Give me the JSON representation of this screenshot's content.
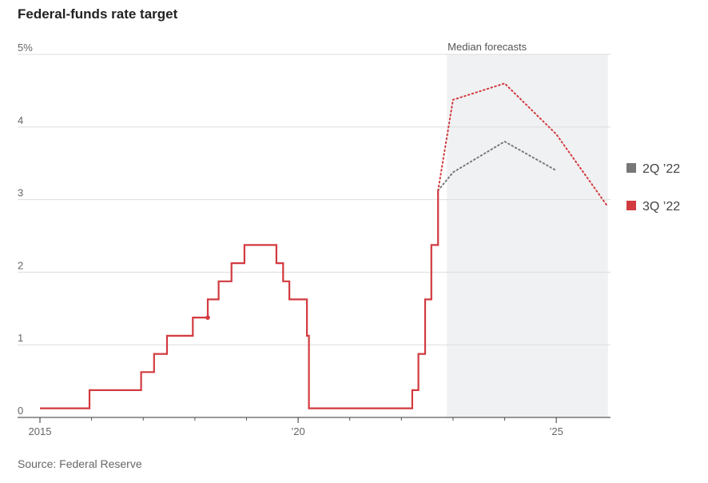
{
  "title": "Federal-funds rate target",
  "source": "Source: Federal Reserve",
  "chart_data": {
    "type": "line",
    "title": "Federal-funds rate target",
    "xlabel": "",
    "ylabel": "",
    "xlim": [
      2015.0,
      2026.05
    ],
    "ylim": [
      0,
      5
    ],
    "grid": true,
    "y_ticks": [
      {
        "value": 0,
        "label": "0"
      },
      {
        "value": 1,
        "label": "1"
      },
      {
        "value": 2,
        "label": "2"
      },
      {
        "value": 3,
        "label": "3"
      },
      {
        "value": 4,
        "label": "4"
      },
      {
        "value": 5,
        "label": "5%"
      }
    ],
    "x_ticks": [
      {
        "value": 2015,
        "label": "2015"
      },
      {
        "value": 2020,
        "label": "’20"
      },
      {
        "value": 2025,
        "label": "’25"
      }
    ],
    "minor_x_ticks": [
      2016,
      2017,
      2018,
      2019,
      2021,
      2022,
      2023,
      2024
    ],
    "forecast_band": {
      "label": "Median forecasts",
      "x_start": 2022.88,
      "x_end": 2026.0
    },
    "actual": {
      "color": "#d23a3f",
      "marker": {
        "x": 2018.25,
        "y": 1.375
      },
      "points": [
        [
          2015.0,
          0.125
        ],
        [
          2015.96,
          0.125
        ],
        [
          2015.96,
          0.375
        ],
        [
          2016.96,
          0.375
        ],
        [
          2016.96,
          0.625
        ],
        [
          2017.21,
          0.625
        ],
        [
          2017.21,
          0.875
        ],
        [
          2017.46,
          0.875
        ],
        [
          2017.46,
          1.125
        ],
        [
          2017.96,
          1.125
        ],
        [
          2017.96,
          1.375
        ],
        [
          2018.25,
          1.375
        ],
        [
          2018.25,
          1.625
        ],
        [
          2018.46,
          1.625
        ],
        [
          2018.46,
          1.875
        ],
        [
          2018.71,
          1.875
        ],
        [
          2018.71,
          2.125
        ],
        [
          2018.96,
          2.125
        ],
        [
          2018.96,
          2.375
        ],
        [
          2019.58,
          2.375
        ],
        [
          2019.58,
          2.125
        ],
        [
          2019.71,
          2.125
        ],
        [
          2019.71,
          1.875
        ],
        [
          2019.83,
          1.875
        ],
        [
          2019.83,
          1.625
        ],
        [
          2020.17,
          1.625
        ],
        [
          2020.17,
          1.125
        ],
        [
          2020.21,
          1.125
        ],
        [
          2020.21,
          0.125
        ],
        [
          2022.21,
          0.125
        ],
        [
          2022.21,
          0.375
        ],
        [
          2022.33,
          0.375
        ],
        [
          2022.33,
          0.875
        ],
        [
          2022.46,
          0.875
        ],
        [
          2022.46,
          1.625
        ],
        [
          2022.58,
          1.625
        ],
        [
          2022.58,
          2.375
        ],
        [
          2022.71,
          2.375
        ],
        [
          2022.71,
          3.125
        ]
      ]
    },
    "series": [
      {
        "name": "2Q ’22",
        "color": "#777777",
        "style": "dotted",
        "points": [
          [
            2022.71,
            3.125
          ],
          [
            2023.0,
            3.375
          ],
          [
            2024.0,
            3.8
          ],
          [
            2025.0,
            3.4
          ]
        ]
      },
      {
        "name": "3Q ’22",
        "color": "#d23a3f",
        "style": "dotted",
        "points": [
          [
            2022.71,
            3.125
          ],
          [
            2023.0,
            4.375
          ],
          [
            2024.0,
            4.6
          ],
          [
            2025.0,
            3.9
          ],
          [
            2026.0,
            2.9
          ]
        ]
      }
    ]
  }
}
